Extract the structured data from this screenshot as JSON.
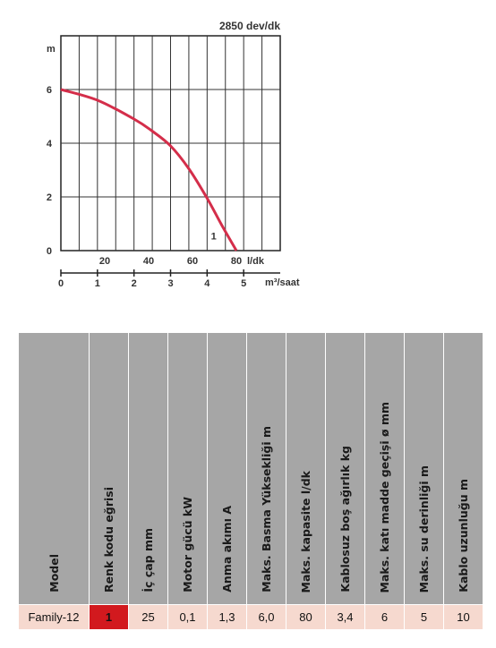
{
  "chart_data": {
    "type": "line",
    "title": "2850 dev/dk",
    "ylabel": "m",
    "ylim": [
      0,
      8
    ],
    "yticks": [
      "0",
      "2",
      "4",
      "6"
    ],
    "x_primary_label": "l/dk",
    "x_primary_ticks": [
      "20",
      "40",
      "60",
      "80"
    ],
    "x_secondary_label": "m³/saat",
    "x_secondary_ticks": [
      "0",
      "1",
      "2",
      "3",
      "4",
      "5"
    ],
    "x_secondary_range": [
      0,
      6
    ],
    "grid": true,
    "series": [
      {
        "name": "1",
        "color": "#d42e4a",
        "x_m3_per_hour": [
          0,
          1.0,
          2.0,
          2.5,
          3.0,
          3.5,
          4.0,
          4.4,
          4.8
        ],
        "y": [
          6.0,
          5.6,
          4.9,
          4.45,
          3.9,
          3.05,
          1.95,
          0.95,
          0.0
        ]
      }
    ]
  },
  "table": {
    "headers": [
      "Model",
      "Renk kodu eğrisi",
      "İç çap mm",
      "Motor gücü kW",
      "Anma akımı A",
      "Maks. Basma Yüksekliği m",
      "Maks. kapasite l/dk",
      "Kablosuz boş ağırlık kg",
      "Maks. katı madde geçişi ø mm",
      "Maks. su derinliği m",
      "Kablo uzunluğu m"
    ],
    "rows": [
      [
        "Family-12",
        "1",
        "25",
        "0,1",
        "1,3",
        "6,0",
        "80",
        "3,4",
        "6",
        "5",
        "10"
      ]
    ],
    "colors": {
      "header_bg": "#a6a6a6",
      "row_bg": "#f6d9cf",
      "code_red": "#d2191e"
    }
  }
}
